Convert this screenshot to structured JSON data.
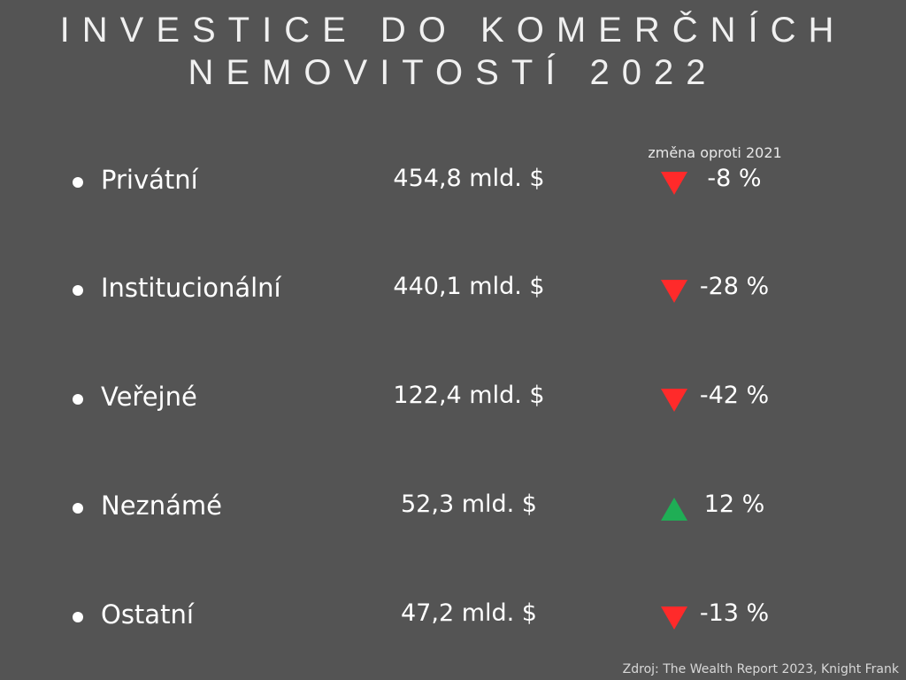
{
  "title": {
    "line1": "INVESTICE DO KOMERČNÍCH",
    "line2": "NEMOVITOSTÍ 2022"
  },
  "change_header": "změna oproti 2021",
  "rows": [
    {
      "label": "Privátní",
      "amount": "454,8 mld. $",
      "direction": "down",
      "change": "-8 %"
    },
    {
      "label": "Institucionální",
      "amount": "440,1 mld. $",
      "direction": "down",
      "change": "-28 %"
    },
    {
      "label": "Veřejné",
      "amount": "122,4 mld. $",
      "direction": "down",
      "change": "-42 %"
    },
    {
      "label": "Neznámé",
      "amount": "52,3 mld. $",
      "direction": "up",
      "change": "12 %"
    },
    {
      "label": "Ostatní",
      "amount": "47,2 mld. $",
      "direction": "down",
      "change": "-13 %"
    }
  ],
  "colors": {
    "background": "#545454",
    "down": "#ff2a2a",
    "up": "#1fae55"
  },
  "icons": {
    "down": "triangle-down-icon",
    "up": "triangle-up-icon"
  },
  "source": "Zdroj: The Wealth Report 2023, Knight Frank"
}
